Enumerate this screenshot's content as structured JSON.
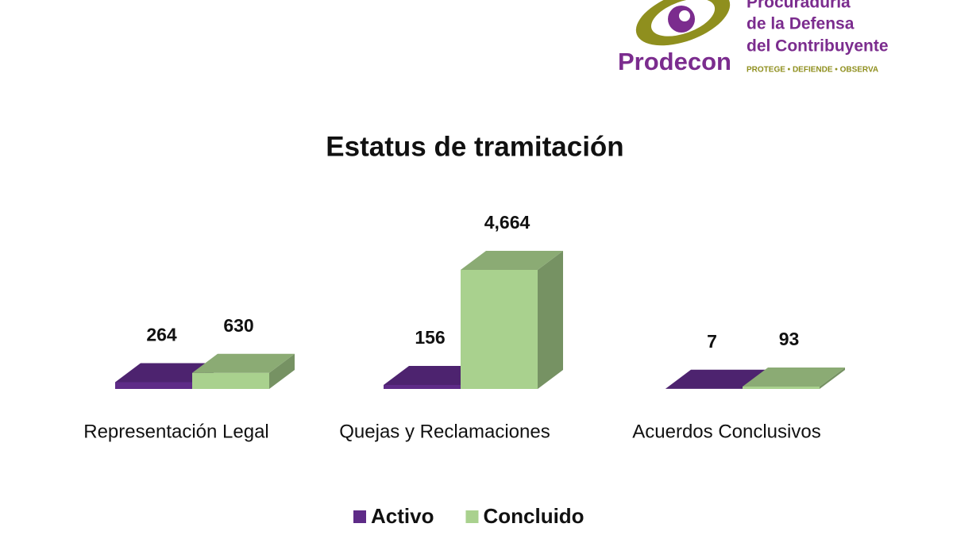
{
  "logo": {
    "line1": "Procuraduría",
    "line2": "de la Defensa",
    "line3": "del Contribuyente",
    "brand": "Prodecon",
    "tagline": "PROTEGE • DEFIENDE • OBSERVA"
  },
  "chart_data": {
    "type": "bar3d",
    "title": "Estatus de tramitación",
    "categories": [
      "Representación Legal",
      "Quejas y Reclamaciones",
      "Acuerdos Conclusivos"
    ],
    "series": [
      {
        "name": "Activo",
        "color": "#5e2b87",
        "values": [
          264,
          156,
          7
        ]
      },
      {
        "name": "Concluido",
        "color": "#a9d18e",
        "values": [
          630,
          4664,
          93
        ],
        "value_labels": [
          "630",
          "4,664",
          "93"
        ]
      }
    ]
  }
}
